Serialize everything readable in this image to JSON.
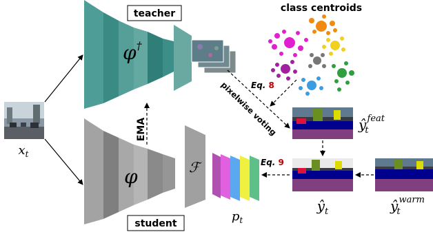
{
  "labels": {
    "teacher": "teacher",
    "student": "student",
    "class_centroids": "class centroids",
    "ema": "EMA",
    "pixelwise_voting": "pixelwise voting",
    "eq8_prefix": "Eq.",
    "eq8_num": "8",
    "eq9_prefix": "Eq.",
    "eq9_num": "9"
  },
  "math": {
    "x_base": "x",
    "x_sub": "t",
    "phi_teacher": "φ",
    "phi_teacher_sup": "†",
    "phi_student": "φ",
    "F": "ℱ",
    "p_base": "p",
    "p_sub": "t",
    "yfeat_base": "ŷ",
    "yfeat_sub": "t",
    "yfeat_sup": "feat",
    "yt_base": "ŷ",
    "yt_sub": "t",
    "ywarm_base": "ŷ",
    "ywarm_sub": "t",
    "ywarm_sup": "warm"
  },
  "colors": {
    "teacher": "#4e9e97",
    "student": "#9c9c9c",
    "eq_number": "#c00000",
    "centroid_clusters": [
      "#e020d0",
      "#f08a10",
      "#f0d020",
      "#777777",
      "#a020a0",
      "#2e9e3e",
      "#3a9de0"
    ],
    "prob_bars": [
      "#b050b0",
      "#e060e0",
      "#5ba8f0",
      "#f0f040",
      "#5fbf88"
    ]
  }
}
